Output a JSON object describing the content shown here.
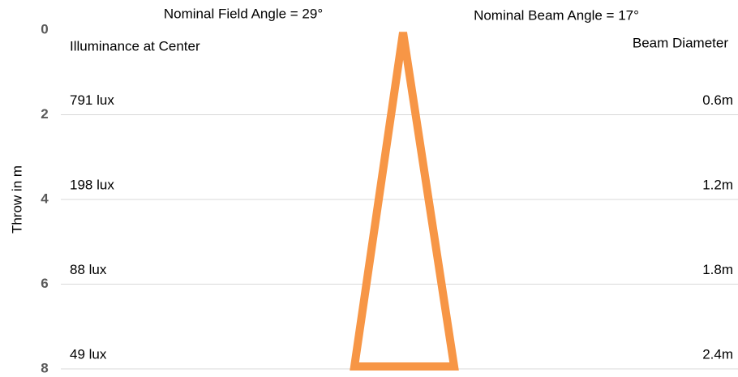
{
  "chart_data": {
    "type": "beam",
    "title": "Nominal Field Angle = 29°",
    "subtitle": "Nominal Beam Angle = 17°",
    "y_label": "Throw in m",
    "left_header": "Illuminance at Center",
    "right_header": "Beam Diameter",
    "ylim": [
      0,
      8
    ],
    "yticks": [
      0,
      2,
      4,
      6,
      8
    ],
    "grid": true,
    "illuminance_labels": [
      "791 lux",
      "198 lux",
      "88 lux",
      "49 lux"
    ],
    "diameter_labels": [
      "0.6m",
      "1.2m",
      "1.8m",
      "2.4m"
    ],
    "color": "#f79646"
  }
}
